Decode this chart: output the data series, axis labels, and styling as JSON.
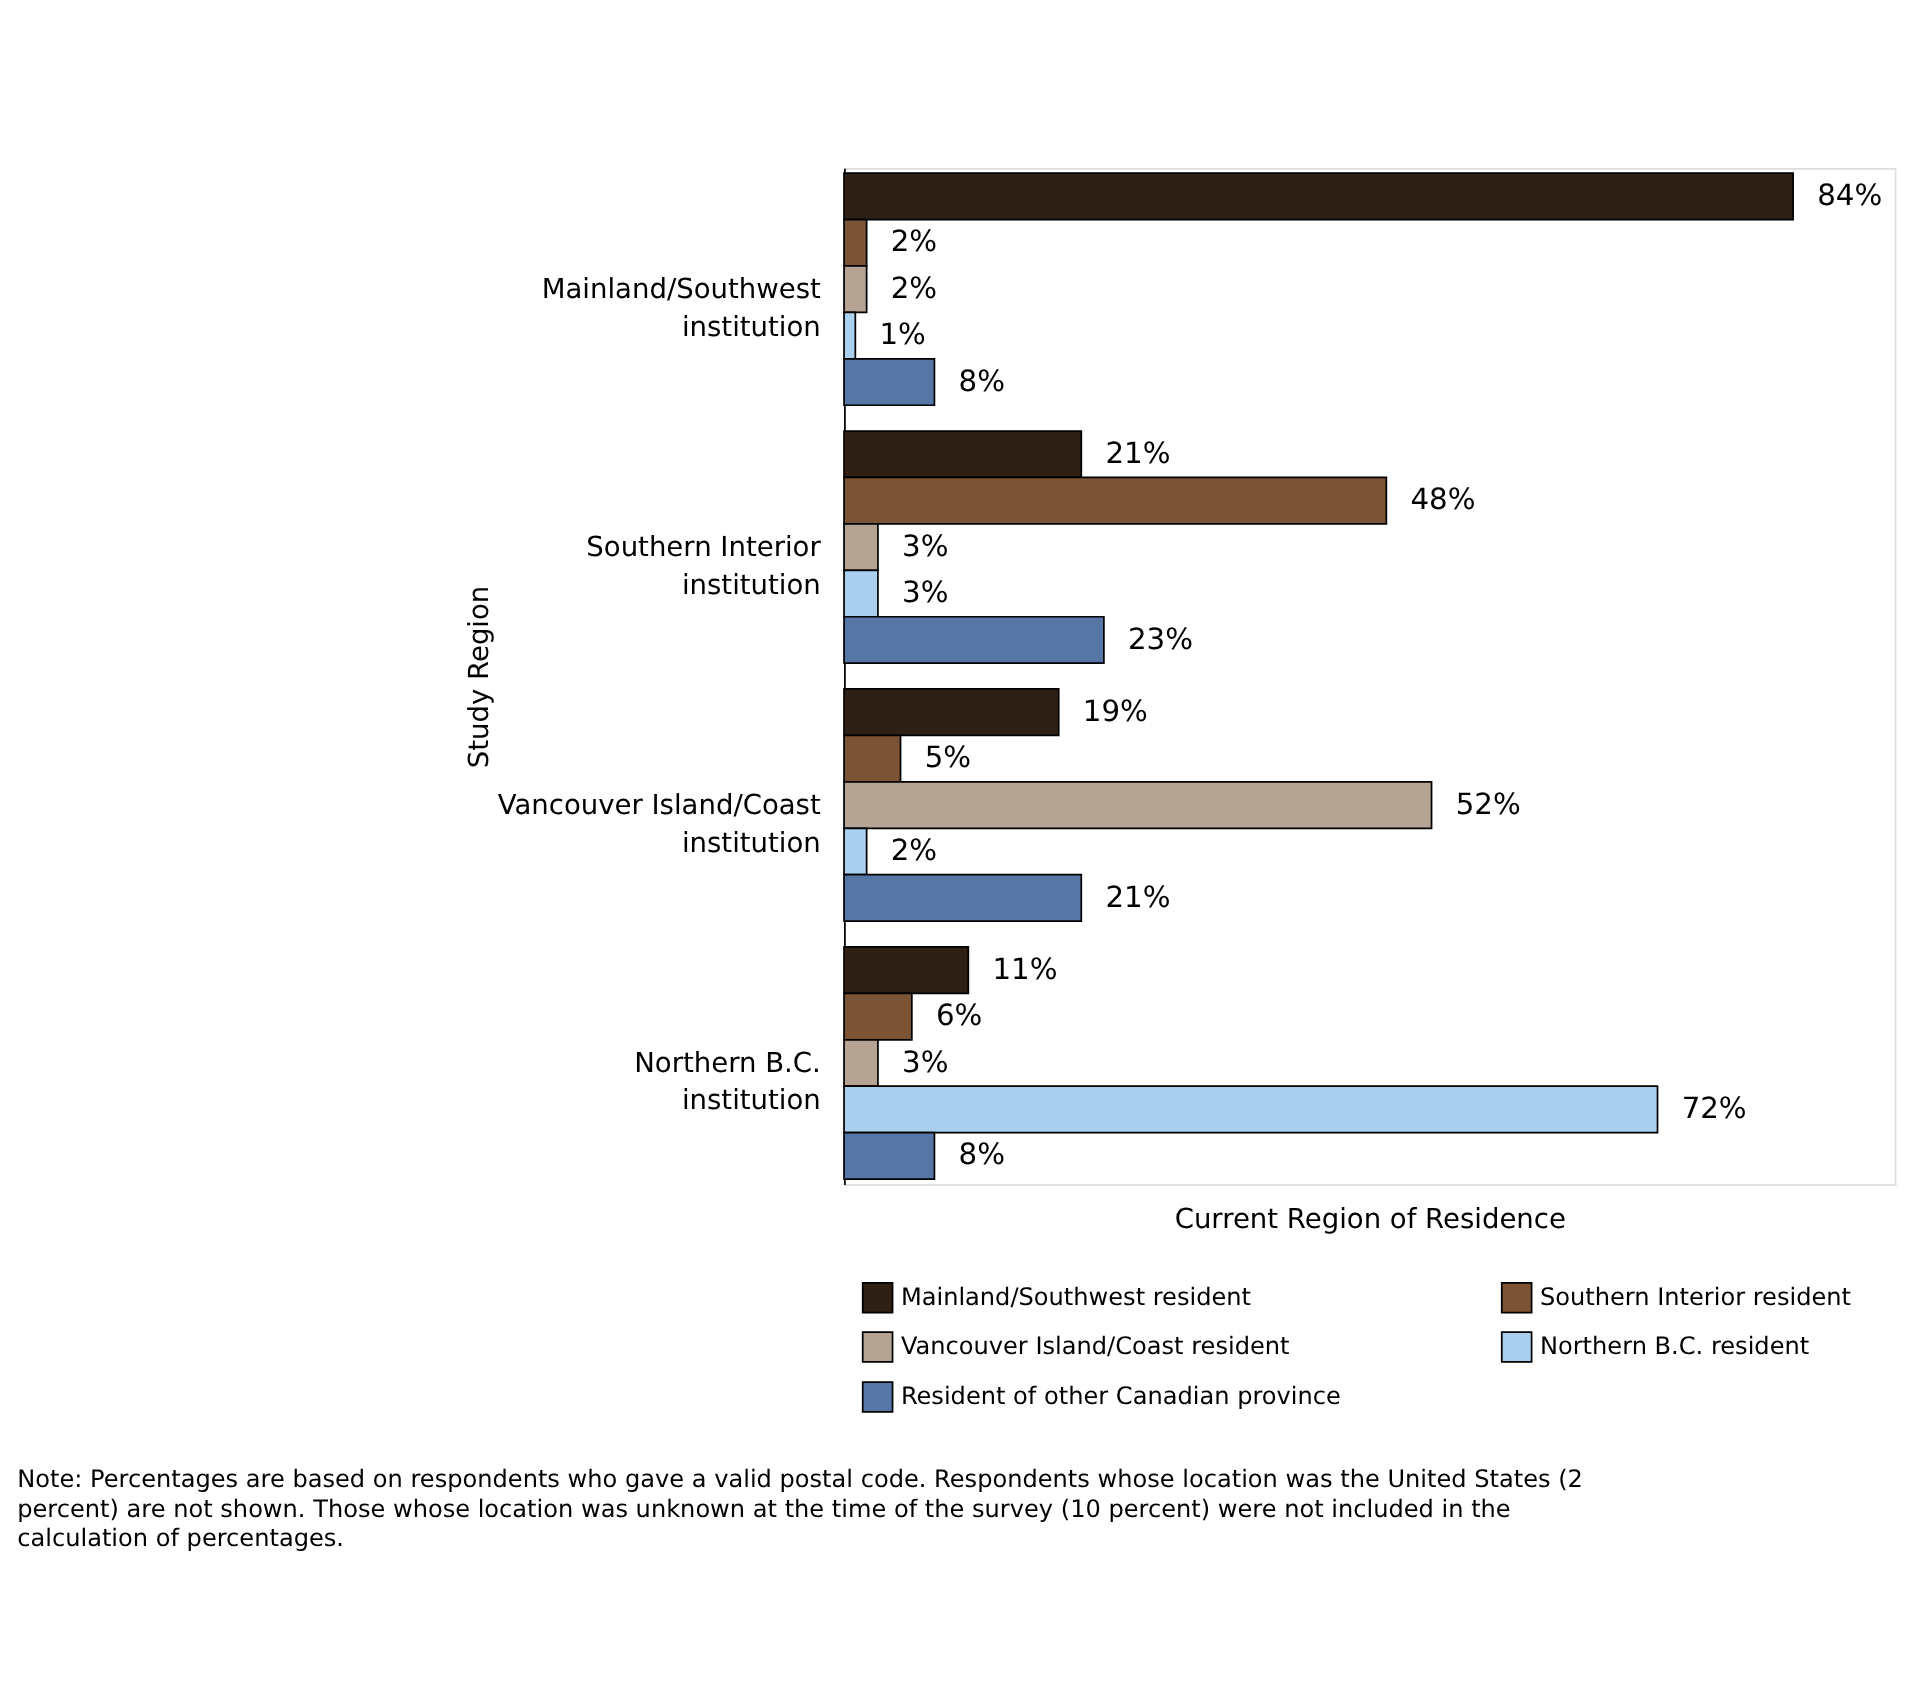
{
  "chart_data": {
    "type": "bar",
    "orientation": "horizontal",
    "xlabel": "Current Region of Residence",
    "ylabel": "Study Region",
    "categories": [
      "Mainland/Southwest institution",
      "Southern Interior institution",
      "Vancouver Island/Coast institution",
      "Northern B.C. institution"
    ],
    "series": [
      {
        "name": "Mainland/Southwest resident",
        "color": "#2e2015",
        "values": [
          84,
          21,
          19,
          11
        ],
        "value_labels": [
          "84%",
          "21%",
          "19%",
          "11%"
        ]
      },
      {
        "name": "Southern Interior resident",
        "color": "#7a5434",
        "values": [
          2,
          48,
          5,
          6
        ],
        "value_labels": [
          "2%",
          "48%",
          "5%",
          "6%"
        ]
      },
      {
        "name": "Vancouver Island/Coast resident",
        "color": "#b5a393",
        "values": [
          2,
          3,
          52,
          3
        ],
        "value_labels": [
          "2%",
          "3%",
          "52%",
          "3%"
        ]
      },
      {
        "name": "Northern B.C. resident",
        "color": "#a9d0ee",
        "values": [
          1,
          3,
          2,
          72
        ],
        "value_labels": [
          "1%",
          "3%",
          "2%",
          "72%"
        ]
      },
      {
        "name": "Resident of other Canadian province",
        "color": "#5677a6",
        "values": [
          8,
          23,
          21,
          8
        ],
        "value_labels": [
          "8%",
          "23%",
          "21%",
          "8%"
        ]
      }
    ],
    "xlim": [
      0,
      93
    ],
    "tick_labels": "y",
    "grid": false,
    "legend": "bottom",
    "annotations": [
      "Note:  Percentages are based on respondents who gave a valid postal code. Respondents whose location was the United States (2 percent) are not shown. Those whose location was unknown at the time of the survey (10 percent) were not included in the calculation of percentages."
    ]
  }
}
